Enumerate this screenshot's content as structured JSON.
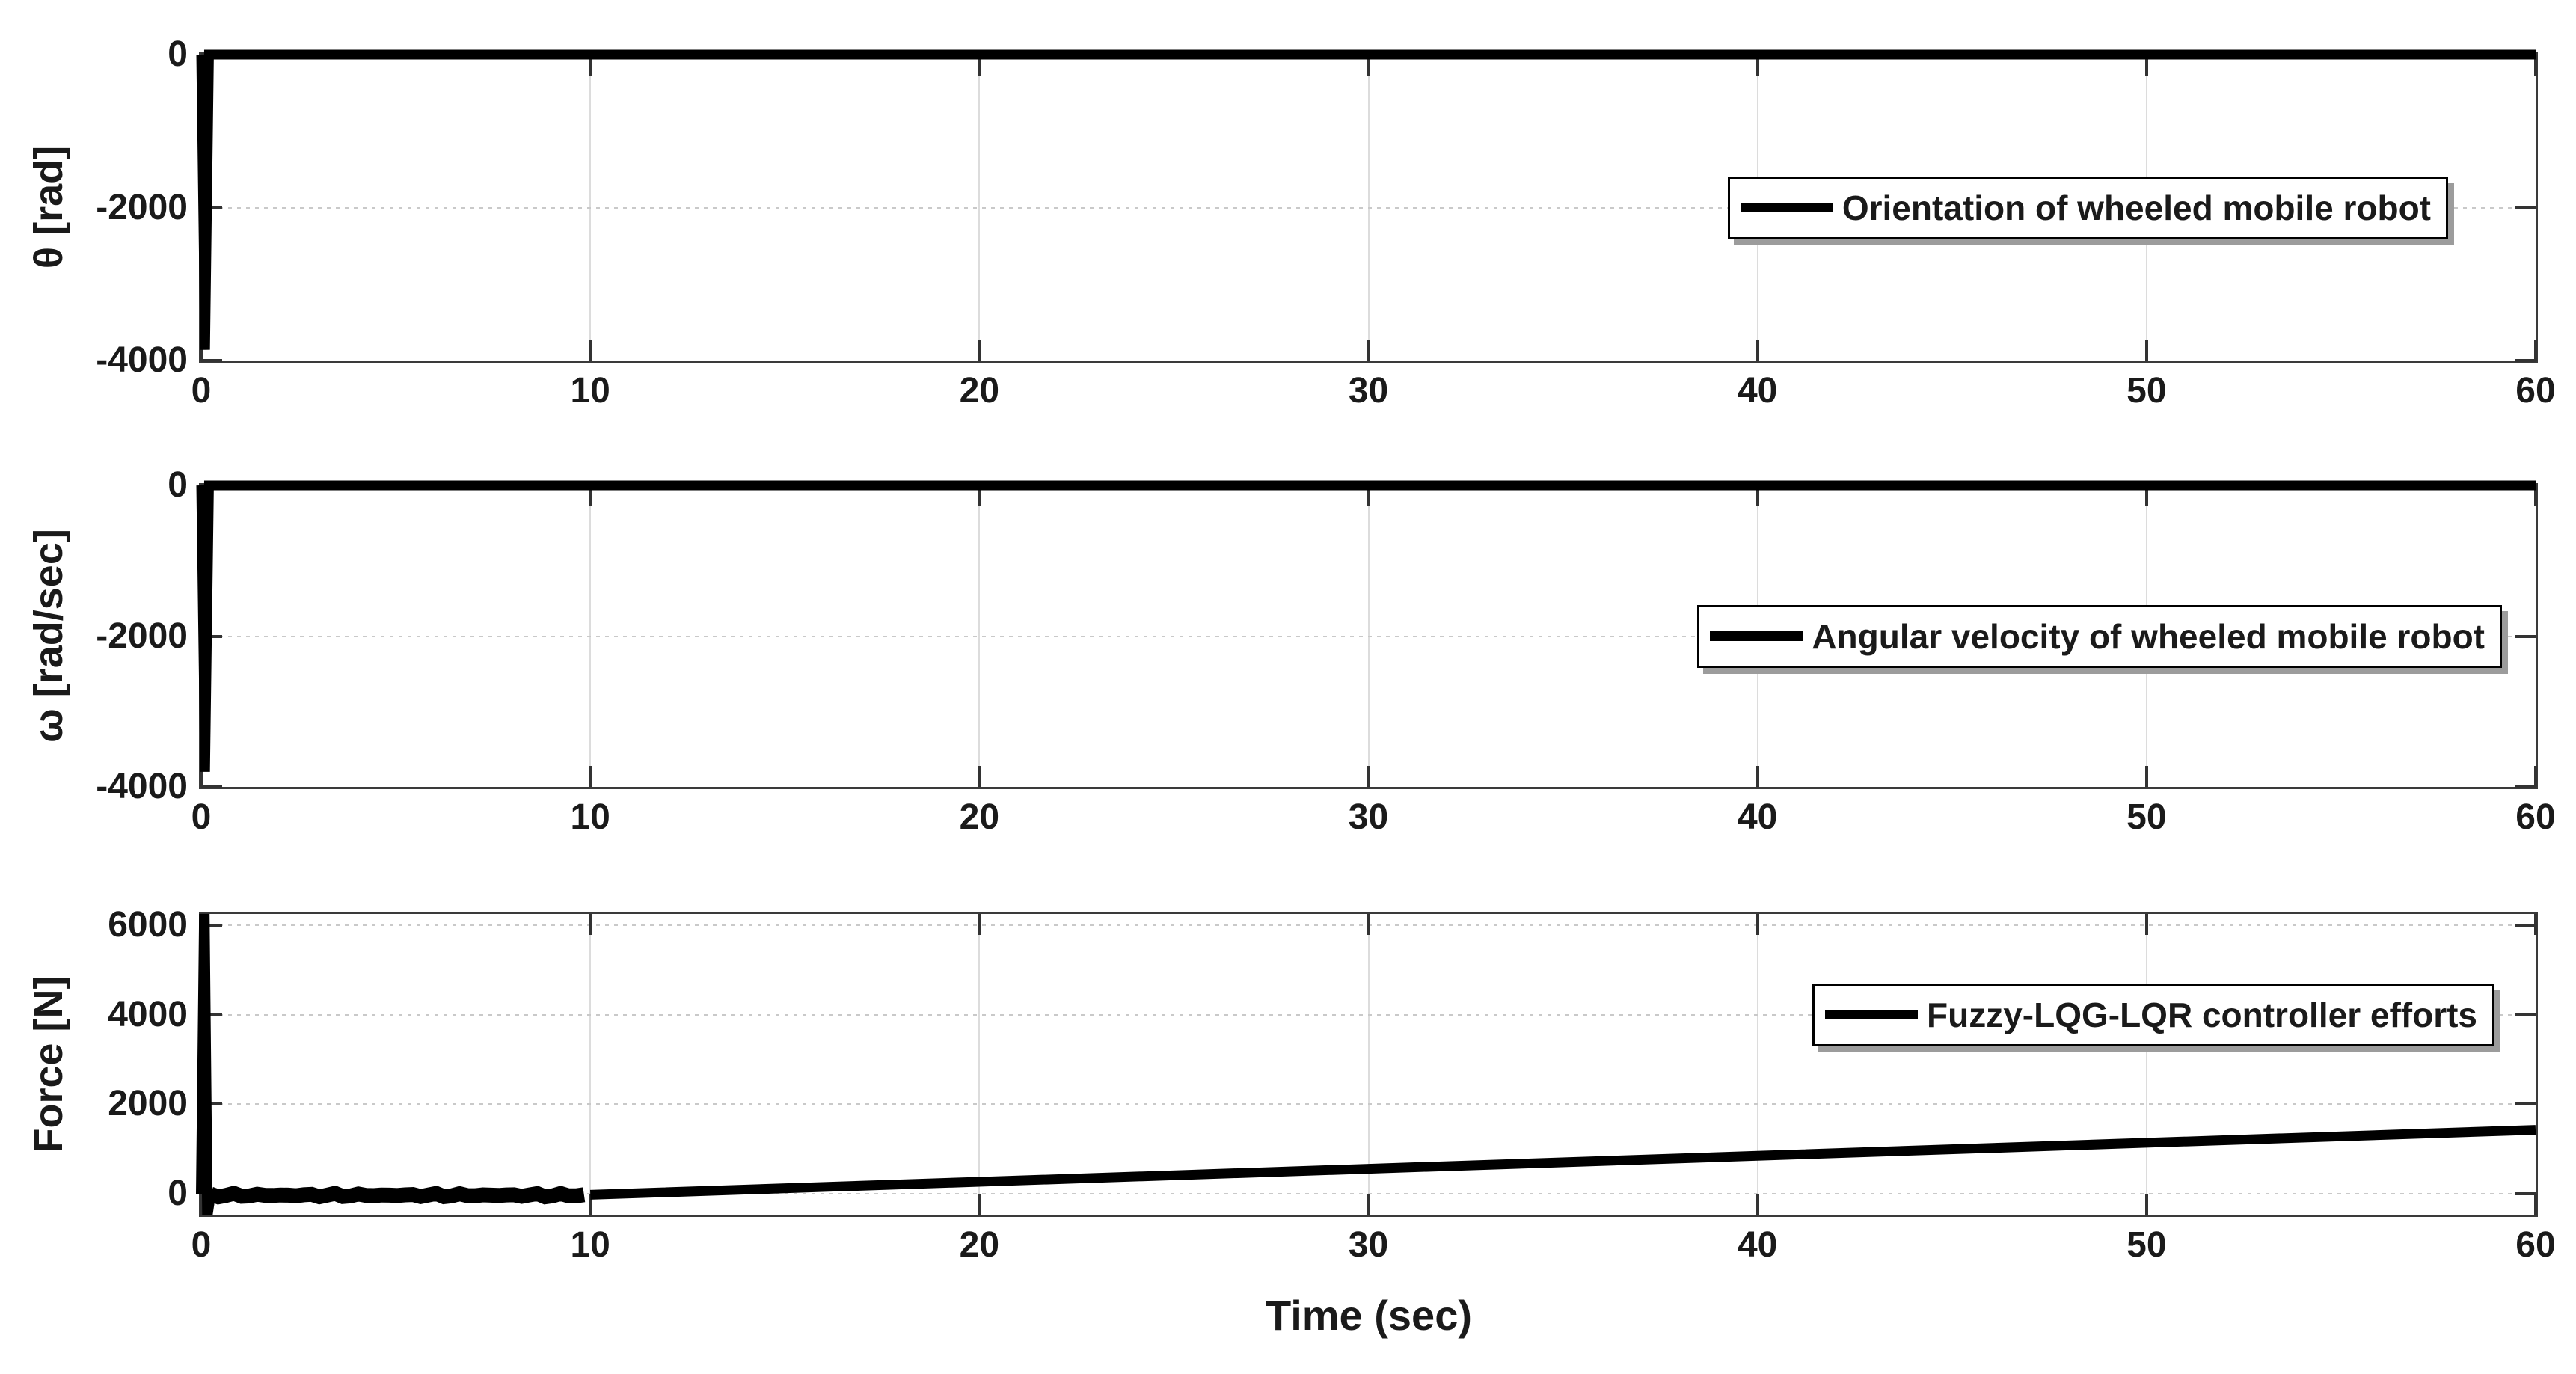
{
  "figure": {
    "xlabel": "Time (sec)",
    "background": "#ffffff",
    "text_color": "#1a1a1a",
    "grid_color": "#dcdcdc",
    "axis_color": "#3a3a3a",
    "data_color": "#000000"
  },
  "chart_data": [
    {
      "type": "line",
      "id": "orientation",
      "ylabel": "θ [rad]",
      "ylim": [
        -4000,
        0
      ],
      "yticks": [
        0,
        -2000,
        -4000
      ],
      "xlim": [
        0,
        60
      ],
      "xticks": [
        0,
        10,
        20,
        30,
        40,
        50,
        60
      ],
      "legend": "Orientation of wheeled mobile robot",
      "grid": true,
      "legend_position": "right-center",
      "series": [
        {
          "name": "theta",
          "linewidth": 13,
          "points": [
            [
              0,
              0
            ],
            [
              0.1,
              -3860
            ],
            [
              0.2,
              0
            ],
            [
              60,
              0
            ]
          ]
        }
      ]
    },
    {
      "type": "line",
      "id": "angular-velocity",
      "ylabel": "ω [rad/sec]",
      "ylim": [
        -4000,
        0
      ],
      "yticks": [
        0,
        -2000,
        -4000
      ],
      "xlim": [
        0,
        60
      ],
      "xticks": [
        0,
        10,
        20,
        30,
        40,
        50,
        60
      ],
      "legend": "Angular velocity of wheeled mobile robot",
      "grid": true,
      "legend_position": "right-center",
      "series": [
        {
          "name": "omega",
          "linewidth": 13,
          "points": [
            [
              0,
              0
            ],
            [
              0.1,
              -3800
            ],
            [
              0.2,
              0
            ],
            [
              60,
              0
            ]
          ]
        }
      ]
    },
    {
      "type": "line",
      "id": "controller-effort",
      "ylabel": "Force [N]",
      "ylim": [
        -465,
        6250
      ],
      "yticks": [
        6000,
        4000,
        2000,
        0
      ],
      "xlim": [
        0,
        60
      ],
      "xticks": [
        0,
        10,
        20,
        30,
        40,
        50,
        60
      ],
      "legend": "Fuzzy-LQG-LQR controller efforts",
      "grid": true,
      "legend_position": "right-upper",
      "series": [
        {
          "name": "force-initial-spike",
          "linewidth": 14,
          "points": [
            [
              0,
              0
            ],
            [
              0.08,
              6250
            ],
            [
              0.16,
              -465
            ],
            [
              0.24,
              0
            ]
          ]
        },
        {
          "name": "force-chatter",
          "linewidth": 20,
          "noise": {
            "from": 0.24,
            "to": 10,
            "step": 0.2,
            "center": -30,
            "amplitude": 45
          }
        },
        {
          "name": "force-ramp",
          "linewidth": 13,
          "points": [
            [
              10,
              -20
            ],
            [
              20,
              270
            ],
            [
              30,
              560
            ],
            [
              40,
              850
            ],
            [
              50,
              1140
            ],
            [
              60,
              1430
            ]
          ]
        }
      ]
    }
  ]
}
